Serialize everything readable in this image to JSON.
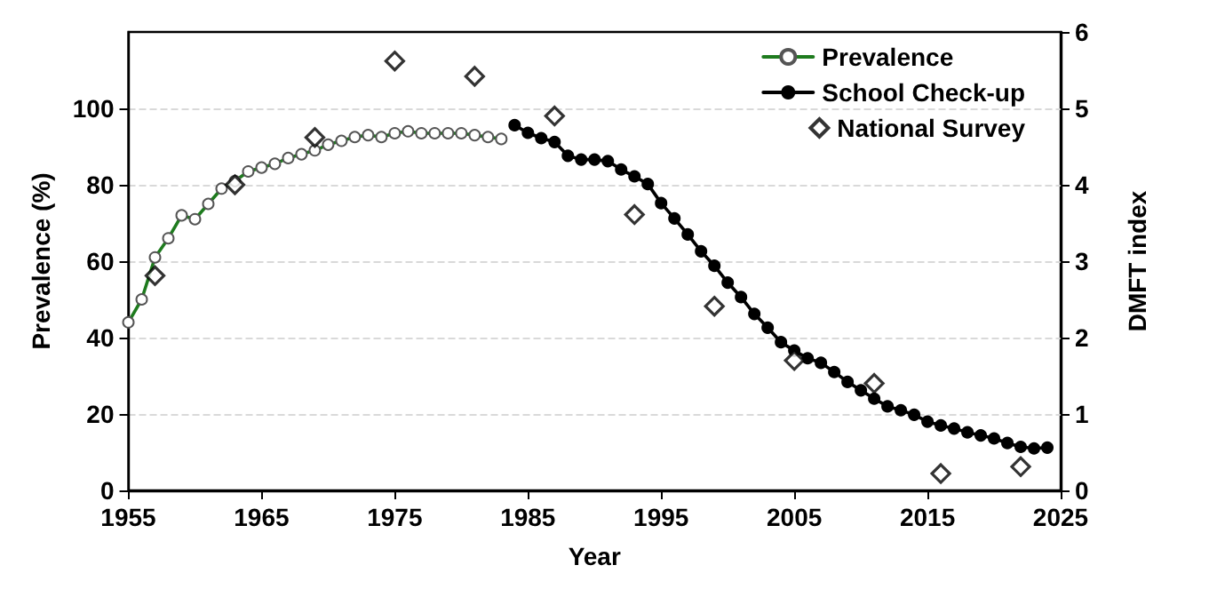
{
  "chart_data": {
    "type": "line",
    "xlabel": "Year",
    "ylabel": "Prevalence (%)",
    "y2label": "DMFT index",
    "xlim": [
      1955,
      2025
    ],
    "xticks": [
      1955,
      1965,
      1975,
      1985,
      1995,
      2005,
      2015,
      2025
    ],
    "ylim": [
      0,
      120
    ],
    "yticks": [
      0,
      20,
      40,
      60,
      80,
      100
    ],
    "y2lim": [
      0,
      6
    ],
    "y2ticks": [
      0,
      1,
      2,
      3,
      4,
      5,
      6
    ],
    "grid": "y",
    "legend": "top right",
    "series": [
      {
        "name": "Prevalence",
        "color": "#1e7b1e",
        "marker": "circle",
        "line_style": "solid",
        "x": [
          1955,
          1956,
          1957,
          1958,
          1959,
          1960,
          1961,
          1962,
          1963,
          1964,
          1965,
          1966,
          1967,
          1968,
          1969,
          1970,
          1971,
          1972,
          1973,
          1974,
          1975,
          1976,
          1977,
          1978,
          1979,
          1980,
          1981,
          1982,
          1983
        ],
        "values": [
          44,
          50,
          61,
          66,
          72,
          71,
          75,
          79,
          81,
          83.5,
          84.5,
          85.5,
          87,
          88,
          89,
          90.5,
          91.5,
          92.5,
          93,
          92.5,
          93.5,
          94,
          93.5,
          93.5,
          93.5,
          93.5,
          93,
          92.5,
          92
        ]
      },
      {
        "name": "School Check-up",
        "axis": "y2",
        "color": "#000000",
        "marker": "circle",
        "line_style": "solid",
        "x": [
          1984,
          1985,
          1986,
          1987,
          1988,
          1989,
          1990,
          1991,
          1992,
          1993,
          1994,
          1995,
          1996,
          1997,
          1998,
          1999,
          2000,
          2001,
          2002,
          2003,
          2004,
          2005,
          2006,
          2007,
          2008,
          2009,
          2010,
          2011,
          2012,
          2013,
          2014,
          2015,
          2016,
          2017,
          2018,
          2019,
          2020,
          2021,
          2022,
          2023,
          2024
        ],
        "values": [
          4.78,
          4.68,
          4.61,
          4.56,
          4.38,
          4.33,
          4.33,
          4.31,
          4.2,
          4.11,
          4.01,
          3.76,
          3.56,
          3.35,
          3.13,
          2.94,
          2.72,
          2.53,
          2.31,
          2.13,
          1.94,
          1.83,
          1.73,
          1.67,
          1.55,
          1.42,
          1.31,
          1.2,
          1.1,
          1.05,
          0.99,
          0.9,
          0.85,
          0.81,
          0.76,
          0.72,
          0.68,
          0.62,
          0.57,
          0.55,
          0.56
        ]
      },
      {
        "name": "National Survey",
        "type": "scatter",
        "axis": "y2",
        "color": "#000000",
        "marker": "diamond",
        "x": [
          1957,
          1963,
          1969,
          1975,
          1981,
          1987,
          1993,
          1999,
          2005,
          2011,
          2016,
          2022
        ],
        "values": [
          2.81,
          4.0,
          4.62,
          5.62,
          5.42,
          4.9,
          3.61,
          2.41,
          1.7,
          1.4,
          0.22,
          0.31
        ]
      }
    ]
  }
}
